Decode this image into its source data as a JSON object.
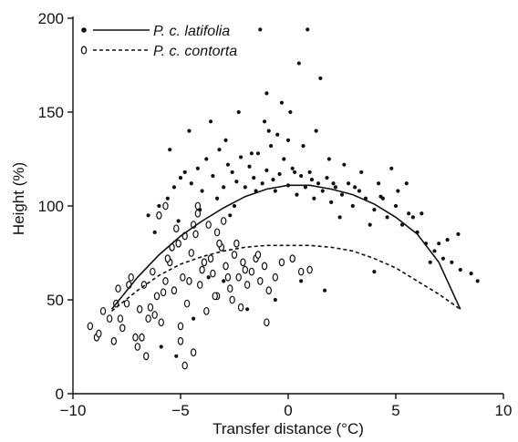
{
  "chart_data": {
    "type": "scatter",
    "title": "",
    "xlabel": "Transfer distance (°C)",
    "ylabel": "Height (%)",
    "xlim": [
      -10,
      10
    ],
    "ylim": [
      0,
      200
    ],
    "xticks": [
      -10,
      -5,
      0,
      5,
      10
    ],
    "xtick_labels": [
      "−10",
      "−5",
      "0",
      "5",
      "10"
    ],
    "yticks": [
      0,
      50,
      100,
      150,
      200
    ],
    "ytick_labels": [
      "0",
      "50",
      "100",
      "150",
      "200"
    ],
    "grid": false,
    "legend_position": "top-left",
    "series": [
      {
        "name": "P. c. latifolia",
        "marker": "filled-dot",
        "line_style": "solid",
        "color": "#111111",
        "curve": {
          "x": [
            -8.2,
            -7,
            -6,
            -5,
            -4,
            -3,
            -2,
            -1,
            0,
            1,
            2,
            3,
            4,
            5,
            6,
            7,
            8
          ],
          "y": [
            45,
            62,
            74,
            84,
            92,
            99,
            105,
            109,
            111,
            111,
            109,
            106,
            101,
            94,
            85,
            70,
            45
          ]
        },
        "points": {
          "x": [
            -6.5,
            -6.0,
            -5.6,
            -5.3,
            -5.0,
            -4.8,
            -4.5,
            -4.2,
            -4.0,
            -3.8,
            -3.5,
            -3.2,
            -3.0,
            -2.8,
            -2.6,
            -2.4,
            -2.2,
            -2.0,
            -1.8,
            -1.6,
            -1.4,
            -1.2,
            -1.0,
            -0.8,
            -0.6,
            -0.4,
            -0.2,
            0.0,
            0.2,
            0.4,
            0.6,
            0.8,
            1.0,
            1.2,
            1.4,
            1.6,
            1.8,
            2.0,
            2.2,
            2.5,
            2.8,
            3.0,
            3.3,
            3.6,
            4.0,
            4.3,
            4.6,
            5.0,
            5.3,
            5.6,
            6.0,
            6.4,
            6.8,
            7.2,
            7.6,
            8.0,
            8.5,
            8.8,
            -5.5,
            -4.6,
            -3.6,
            -2.9,
            -2.3,
            -1.7,
            -1.1,
            -0.5,
            0.1,
            0.7,
            1.3,
            1.9,
            2.6,
            3.4,
            4.2,
            5.1,
            6.2,
            7.4,
            -6.2,
            -5.1,
            -4.1,
            -3.3,
            -2.5,
            -1.5,
            -0.7,
            0.3,
            1.1,
            2.1,
            3.1,
            4.4,
            5.8,
            7.0,
            -1.0,
            -0.3,
            0.5,
            1.5,
            -2.1,
            -3.7,
            4.8,
            5.5,
            -1.3,
            0.9,
            2.4,
            3.8,
            -0.9,
            0.0,
            -4.4,
            -5.9,
            -6.8,
            -1.9,
            -0.6,
            1.7,
            -3.0,
            6.6,
            -2.7,
            0.6,
            4.0,
            -5.2,
            7.9
          ],
          "y": [
            95,
            100,
            104,
            110,
            115,
            118,
            112,
            120,
            108,
            125,
            116,
            130,
            110,
            122,
            118,
            113,
            126,
            110,
            121,
            115,
            128,
            112,
            119,
            132,
            108,
            117,
            125,
            111,
            120,
            106,
            116,
            110,
            118,
            104,
            112,
            108,
            115,
            102,
            110,
            106,
            112,
            100,
            108,
            104,
            98,
            105,
            94,
            100,
            90,
            96,
            86,
            80,
            76,
            72,
            70,
            66,
            64,
            60,
            130,
            140,
            145,
            135,
            150,
            128,
            145,
            138,
            150,
            132,
            140,
            125,
            122,
            118,
            112,
            108,
            96,
            82,
            86,
            92,
            98,
            104,
            100,
            108,
            114,
            118,
            114,
            112,
            110,
            104,
            94,
            80,
            160,
            155,
            176,
            168,
            70,
            62,
            120,
            112,
            194,
            194,
            94,
            90,
            140,
            135,
            40,
            25,
            30,
            45,
            50,
            55,
            60,
            70,
            95,
            60,
            65,
            20,
            85
          ]
        }
      },
      {
        "name": "P. c. contorta",
        "marker": "open-oval",
        "line_style": "dashed",
        "color": "#111111",
        "curve": {
          "x": [
            -8.2,
            -7,
            -6,
            -5,
            -4,
            -3,
            -2,
            -1,
            0,
            1,
            2,
            3,
            4,
            5,
            6,
            7,
            8
          ],
          "y": [
            44,
            55,
            63,
            69,
            73,
            76,
            78,
            79,
            79,
            79,
            78,
            76,
            72,
            67,
            60,
            53,
            45
          ]
        },
        "points": {
          "x": [
            -9.2,
            -8.9,
            -8.6,
            -8.3,
            -8.1,
            -7.9,
            -7.7,
            -7.5,
            -7.3,
            -7.1,
            -6.9,
            -6.7,
            -6.5,
            -6.3,
            -6.1,
            -5.9,
            -5.7,
            -5.5,
            -5.3,
            -5.1,
            -4.9,
            -4.7,
            -4.5,
            -4.3,
            -4.1,
            -3.9,
            -3.7,
            -3.5,
            -3.3,
            -3.1,
            -2.9,
            -2.7,
            -2.5,
            -2.3,
            -2.1,
            -1.9,
            -1.7,
            -1.5,
            -1.3,
            -1.1,
            -0.9,
            -0.6,
            -0.3,
            0.2,
            0.6,
            1.0,
            -8.0,
            -7.4,
            -6.8,
            -6.2,
            -5.6,
            -5.0,
            -4.4,
            -3.8,
            -3.2,
            -2.6,
            -2.0,
            -1.4,
            -7.8,
            -7.0,
            -6.4,
            -5.8,
            -5.2,
            -4.6,
            -4.0,
            -3.4,
            -2.8,
            -2.2,
            -6.0,
            -5.4,
            -4.8,
            -4.2,
            -3.6,
            -3.0,
            -2.4,
            -4.8,
            -4.4,
            -5.0,
            -6.6,
            -1.0,
            -8.8,
            -5.7,
            -4.2,
            -3.3
          ],
          "y": [
            36,
            30,
            44,
            40,
            28,
            56,
            35,
            48,
            62,
            30,
            45,
            58,
            40,
            65,
            52,
            38,
            60,
            70,
            55,
            80,
            62,
            48,
            75,
            85,
            58,
            70,
            90,
            64,
            52,
            78,
            68,
            56,
            74,
            62,
            70,
            58,
            65,
            72,
            60,
            68,
            55,
            62,
            70,
            72,
            65,
            66,
            48,
            58,
            30,
            42,
            72,
            36,
            90,
            44,
            80,
            50,
            66,
            74,
            40,
            25,
            46,
            54,
            88,
            60,
            66,
            52,
            62,
            46,
            95,
            78,
            84,
            100,
            72,
            92,
            80,
            15,
            22,
            28,
            20,
            38,
            32,
            100,
            96,
            86
          ]
        }
      }
    ]
  }
}
